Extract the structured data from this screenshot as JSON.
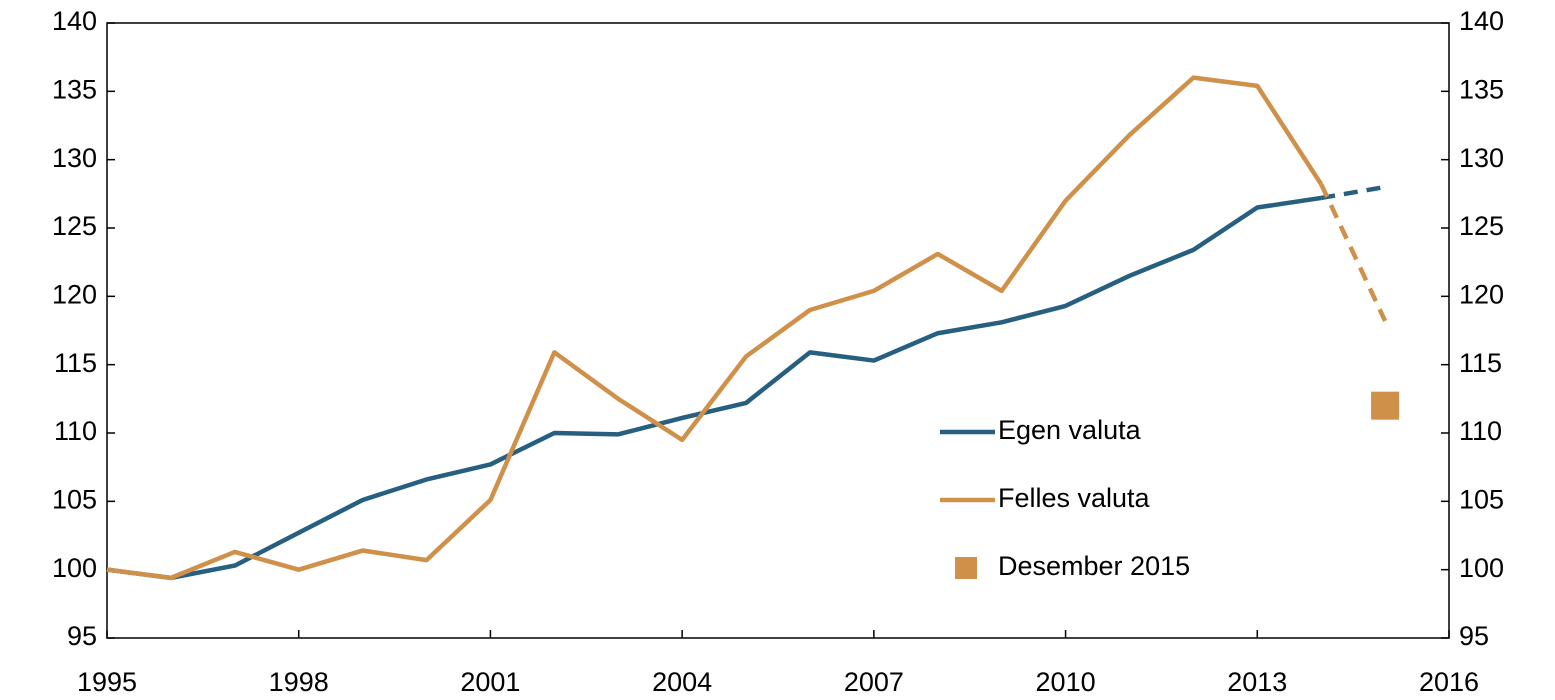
{
  "chart_data": {
    "type": "line",
    "x": [
      1995,
      1996,
      1997,
      1998,
      1999,
      2000,
      2001,
      2002,
      2003,
      2004,
      2005,
      2006,
      2007,
      2008,
      2009,
      2010,
      2011,
      2012,
      2013,
      2014,
      2015
    ],
    "series": [
      {
        "name": "Egen valuta",
        "color": "#265f7f",
        "dash_from": 2014,
        "values": [
          100,
          99.4,
          100.3,
          102.7,
          105.1,
          106.6,
          107.7,
          110.0,
          109.9,
          111.1,
          112.2,
          115.9,
          115.3,
          117.3,
          118.1,
          119.3,
          121.5,
          123.4,
          126.5,
          127.2,
          128.0
        ]
      },
      {
        "name": "Felles valuta",
        "color": "#cf904a",
        "dash_from": 2014,
        "values": [
          100,
          99.4,
          101.3,
          100.0,
          101.4,
          100.7,
          105.1,
          115.9,
          112.5,
          109.5,
          115.6,
          119.0,
          120.4,
          123.1,
          120.4,
          127.0,
          131.8,
          136.0,
          135.4,
          128.2,
          118.2
        ]
      },
      {
        "name": "Desember 2015",
        "color": "#cf904a",
        "marker": "square",
        "x": [
          2015
        ],
        "values": [
          112
        ]
      }
    ],
    "xlim": [
      1995,
      2016
    ],
    "xticks": [
      1995,
      1998,
      2001,
      2004,
      2007,
      2010,
      2013,
      2016
    ],
    "ylim": [
      95,
      140
    ],
    "yticks": [
      95,
      100,
      105,
      110,
      115,
      120,
      125,
      130,
      135,
      140
    ],
    "y2lim": [
      95,
      140
    ],
    "y2ticks": [
      95,
      100,
      105,
      110,
      115,
      120,
      125,
      130,
      135,
      140
    ]
  }
}
